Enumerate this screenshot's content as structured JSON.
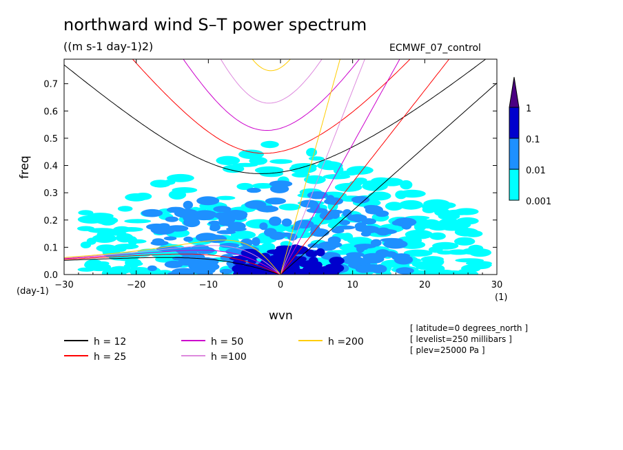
{
  "chart_data": {
    "type": "heatmap",
    "title": "northward wind S–T power spectrum",
    "subtitle": "((m s-1 day-1)2)",
    "dataset_label": "ECMWF_07_control",
    "xlabel": "wvn",
    "x_unit": "(1)",
    "ylabel": "freq",
    "y_unit": "(day-1)",
    "xlim": [
      -30,
      30
    ],
    "ylim": [
      0,
      0.79
    ],
    "x_ticks": [
      -30,
      -20,
      -10,
      0,
      10,
      20,
      30
    ],
    "x_tick_labels": [
      "−30",
      "−20",
      "−10",
      "0",
      "10",
      "20",
      "30"
    ],
    "y_ticks": [
      0.0,
      0.1,
      0.2,
      0.3,
      0.4,
      0.5,
      0.6,
      0.7
    ],
    "y_tick_labels": [
      "0.0",
      "0.1",
      "0.2",
      "0.3",
      "0.4",
      "0.5",
      "0.6",
      "0.7"
    ],
    "colorbar": {
      "labels": [
        "1",
        "0.1",
        "0.01",
        "0.001"
      ],
      "levels": [
        0.001,
        0.01,
        0.1,
        1
      ],
      "colors": [
        "#00ffff",
        "#1e90ff",
        "#0000cd",
        "#4b0082"
      ]
    },
    "contour_regions": [
      {
        "level": 0.001,
        "color": "#00ffff",
        "x_range": [
          -27,
          28
        ],
        "y_range": [
          0.0,
          0.5
        ]
      },
      {
        "level": 0.01,
        "color": "#1e90ff",
        "x_range": [
          -18,
          18
        ],
        "y_range": [
          0.0,
          0.35
        ]
      },
      {
        "level": 0.1,
        "color": "#0000cd",
        "x_range": [
          -6,
          8
        ],
        "y_range": [
          0.0,
          0.1
        ]
      }
    ],
    "dispersion_curves": [
      {
        "label": "h = 12",
        "h": 12,
        "color": "#000000"
      },
      {
        "label": "h = 25",
        "h": 25,
        "color": "#ff0000"
      },
      {
        "label": "h = 50",
        "h": 50,
        "color": "#cc00cc"
      },
      {
        "label": "h =100",
        "h": 100,
        "color": "#dd88dd"
      },
      {
        "label": "h =200",
        "h": 200,
        "color": "#ffcc00"
      }
    ],
    "annotations": [
      "[ latitude=0 degrees_north ]",
      "[ levelist=250 millibars ]",
      "[ plev=25000 Pa ]"
    ]
  }
}
